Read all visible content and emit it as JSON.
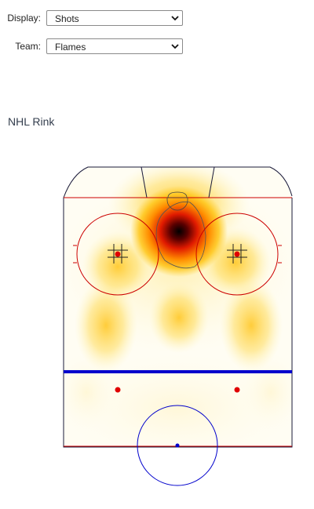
{
  "controls": {
    "display": {
      "label": "Display:",
      "value": "Shots",
      "icon": "chevron-down-icon"
    },
    "team": {
      "label": "Team:",
      "value": "Flames",
      "icon": "chevron-down-icon"
    }
  },
  "rink": {
    "title": "NHL Rink",
    "heatmap_colors": [
      "#fff7c8",
      "#ffd23a",
      "#ff8c00",
      "#e01a00",
      "#000000"
    ],
    "line_colors": {
      "goal_line": "#cc0000",
      "blue_line": "#0000cc",
      "boards": "#1a1a3a"
    }
  }
}
